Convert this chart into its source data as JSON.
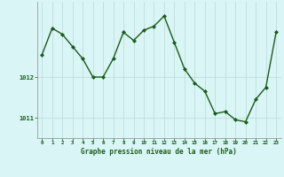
{
  "x": [
    0,
    1,
    2,
    3,
    4,
    5,
    6,
    7,
    8,
    9,
    10,
    11,
    12,
    13,
    14,
    15,
    16,
    17,
    18,
    19,
    20,
    21,
    22,
    23
  ],
  "y": [
    1012.55,
    1013.2,
    1013.05,
    1012.75,
    1012.45,
    1012.0,
    1012.0,
    1012.45,
    1013.1,
    1012.9,
    1013.15,
    1013.25,
    1013.5,
    1012.85,
    1012.2,
    1011.85,
    1011.65,
    1011.1,
    1011.15,
    1010.95,
    1010.9,
    1011.45,
    1011.75,
    1013.1
  ],
  "line_color": "#1a5c1a",
  "marker_color": "#1a5c1a",
  "bg_color": "#d9f5f5",
  "grid_color": "#c0dede",
  "axis_label_color": "#1a5c1a",
  "tick_label_color": "#1a5c1a",
  "xlabel": "Graphe pression niveau de la mer (hPa)",
  "yticks": [
    1011,
    1012
  ],
  "ylim": [
    1010.5,
    1013.85
  ],
  "xlim": [
    -0.5,
    23.5
  ]
}
